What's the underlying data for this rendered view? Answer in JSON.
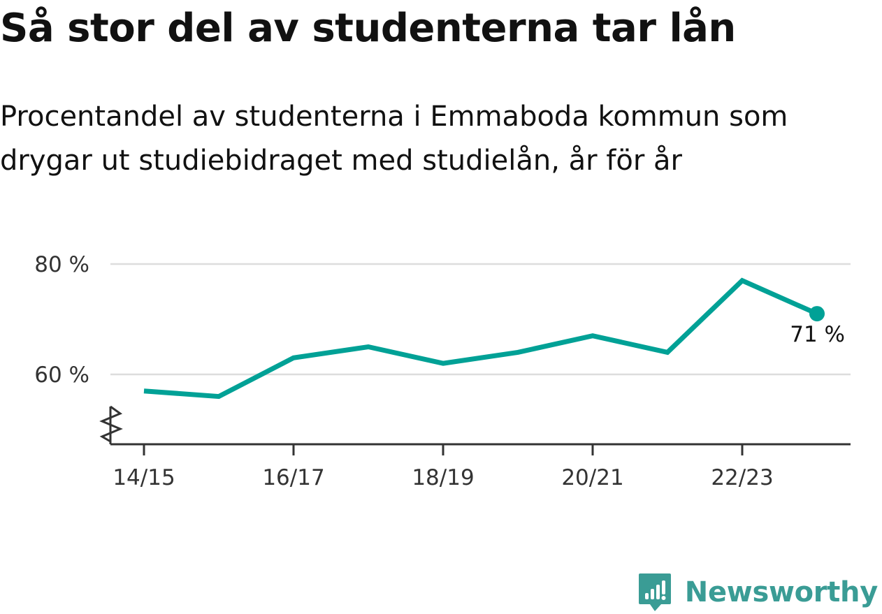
{
  "title": "Så stor del av studenterna tar lån",
  "subtitle": "Procentandel av studenterna i Emmaboda kommun som drygar ut studiebidraget med studielån, år för år",
  "colors": {
    "line": "#00a196",
    "grid": "#dddddd",
    "axis": "#333333",
    "brand": "#3a9c95"
  },
  "chart_data": {
    "type": "line",
    "x": [
      "14/15",
      "15/16",
      "16/17",
      "17/18",
      "18/19",
      "19/20",
      "20/21",
      "21/22",
      "22/23",
      "23/24"
    ],
    "series": [
      {
        "values": [
          57,
          56,
          63,
          65,
          62,
          64,
          67,
          64,
          77,
          71
        ]
      }
    ],
    "x_tick_labels": [
      "14/15",
      "16/17",
      "18/19",
      "20/21",
      "22/23"
    ],
    "y_ticks": [
      60,
      80
    ],
    "y_tick_labels": [
      "60 %",
      "80 %"
    ],
    "ylim": [
      48,
      80
    ],
    "grid": true,
    "axis_break": true,
    "end_label": "71 %"
  },
  "brand": {
    "name": "Newsworthy",
    "icon": "bar-chart-speech-bubble-icon"
  }
}
